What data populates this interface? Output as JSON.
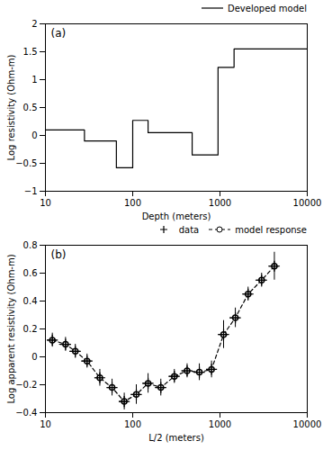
{
  "chart_data": [
    {
      "type": "line",
      "title": "(a)",
      "x_label": "Depth (meters)",
      "y_label": "Log resistivity (Ohm-m)",
      "log": "x",
      "xlim": [
        10,
        10000
      ],
      "xticks": [
        10,
        100,
        1000,
        10000
      ],
      "ylim": [
        -1,
        2
      ],
      "yticks": [
        -1,
        -0.5,
        0,
        0.5,
        1,
        1.5,
        2
      ],
      "grid": false,
      "legend": "upper right",
      "series": [
        {
          "name": "Developed model",
          "type": "line",
          "line_style": "solid",
          "color": "black",
          "x": [
            10,
            28,
            28,
            65,
            65,
            100,
            100,
            150,
            150,
            480,
            480,
            950,
            950,
            1450,
            1450,
            2200,
            2200,
            10000
          ],
          "values": [
            0.1,
            0.1,
            -0.1,
            -0.1,
            -0.58,
            -0.58,
            0.27,
            0.27,
            0.05,
            0.05,
            -0.35,
            -0.35,
            1.22,
            1.22,
            1.55,
            1.55,
            1.55,
            1.55
          ]
        }
      ]
    },
    {
      "type": "scatter",
      "title": "(b)",
      "x_label": "L/2 (meters)",
      "y_label": "Log apparent resistivity (Ohm-m)",
      "log": "x",
      "xlim": [
        10,
        10000
      ],
      "xticks": [
        10,
        100,
        1000,
        10000
      ],
      "ylim": [
        -0.4,
        0.8
      ],
      "yticks": [
        -0.4,
        -0.2,
        0,
        0.2,
        0.4,
        0.6,
        0.8
      ],
      "grid": false,
      "legend": "upper right",
      "series": [
        {
          "name": "data",
          "type": "scatter",
          "marker": "plus",
          "color": "black",
          "x": [
            12,
            17,
            22,
            30,
            42,
            58,
            80,
            110,
            150,
            210,
            300,
            420,
            580,
            800,
            1100,
            1500,
            2100,
            3000,
            4200
          ],
          "values": [
            0.12,
            0.09,
            0.04,
            -0.03,
            -0.15,
            -0.22,
            -0.32,
            -0.27,
            -0.19,
            -0.22,
            -0.14,
            -0.1,
            -0.11,
            -0.09,
            0.16,
            0.28,
            0.45,
            0.55,
            0.65
          ],
          "xerr": [
            1.5,
            2.5,
            3,
            4,
            5,
            7,
            10,
            14,
            20,
            28,
            40,
            55,
            75,
            100,
            140,
            200,
            280,
            420,
            580
          ],
          "yerr": [
            0.05,
            0.05,
            0.05,
            0.05,
            0.06,
            0.06,
            0.06,
            0.07,
            0.07,
            0.06,
            0.05,
            0.05,
            0.06,
            0.06,
            0.1,
            0.07,
            0.05,
            0.05,
            0.1
          ]
        },
        {
          "name": "model response",
          "type": "line",
          "line_style": "dashed",
          "marker": "circle",
          "color": "black",
          "x": [
            12,
            17,
            22,
            30,
            42,
            58,
            80,
            110,
            150,
            210,
            300,
            420,
            580,
            800,
            1100,
            1500,
            2100,
            3000,
            4200
          ],
          "values": [
            0.12,
            0.09,
            0.04,
            -0.03,
            -0.15,
            -0.22,
            -0.32,
            -0.27,
            -0.19,
            -0.22,
            -0.14,
            -0.1,
            -0.11,
            -0.09,
            0.16,
            0.28,
            0.45,
            0.55,
            0.65
          ]
        }
      ]
    }
  ]
}
